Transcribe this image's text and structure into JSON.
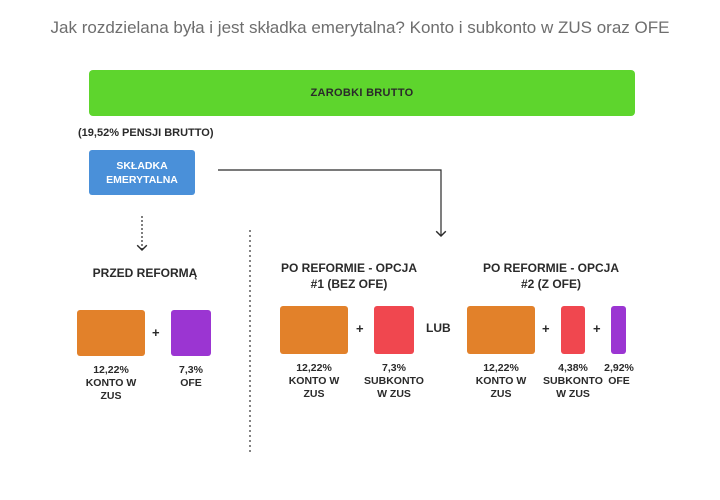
{
  "title": "Jak rozdzielana była i jest składka emerytalna? Konto i subkonto w ZUS oraz OFE",
  "gross_bar": "ZAROBKI BRUTTO",
  "percent_note": "(19,52% PENSJI BRUTTO)",
  "contribution_box": "SKŁADKA EMERYTALNA",
  "sections": {
    "before": {
      "heading": "PRZED REFORMĄ",
      "items": [
        {
          "label": "12,22% KONTO W ZUS",
          "color": "#e2812a"
        },
        {
          "label": "7,3% OFE",
          "color": "#9b35d2"
        }
      ]
    },
    "after1": {
      "heading": "PO REFORMIE - OPCJA #1 (BEZ OFE)",
      "items": [
        {
          "label": "12,22% KONTO W ZUS",
          "color": "#e2812a"
        },
        {
          "label": "7,3% SUBKONTO W ZUS",
          "color": "#f0474f"
        }
      ]
    },
    "or_label": "LUB",
    "after2": {
      "heading": "PO REFORMIE - OPCJA #2 (Z OFE)",
      "items": [
        {
          "label": "12,22% KONTO W ZUS",
          "color": "#e2812a"
        },
        {
          "label": "4,38% SUBKONTO W ZUS",
          "color": "#f0474f"
        },
        {
          "label": "2,92% OFE",
          "color": "#9b35d2"
        }
      ]
    }
  },
  "plus_sign": "+"
}
